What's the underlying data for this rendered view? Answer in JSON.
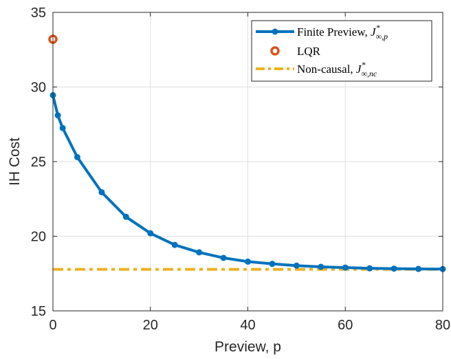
{
  "chart_data": {
    "type": "line",
    "xlabel": "Preview, p",
    "ylabel": "IH Cost",
    "xlim": [
      0,
      80
    ],
    "ylim": [
      15,
      35
    ],
    "xticks": [
      0,
      20,
      40,
      60,
      80
    ],
    "yticks": [
      15,
      20,
      25,
      30,
      35
    ],
    "grid": true,
    "legend_position": "top-right",
    "colors": {
      "finite": "#0072BD",
      "lqr": "#D95319",
      "noncausal": "#EDB120",
      "grid": "#DFDFDF",
      "axis": "#262626"
    },
    "series": [
      {
        "name": "Finite Preview, J*∞,p",
        "legend_parts": {
          "text": "Finite Preview, ",
          "sym": "J",
          "sup": "*",
          "sub": "∞,p"
        },
        "style": "line-with-markers",
        "x": [
          0,
          1,
          2,
          5,
          10,
          15,
          20,
          25,
          30,
          35,
          40,
          45,
          50,
          55,
          60,
          65,
          70,
          75,
          80
        ],
        "y": [
          29.45,
          28.1,
          27.25,
          25.3,
          22.95,
          21.3,
          20.2,
          19.42,
          18.92,
          18.55,
          18.3,
          18.15,
          18.03,
          17.95,
          17.9,
          17.85,
          17.83,
          17.81,
          17.8
        ]
      },
      {
        "name": "LQR",
        "legend_parts": {
          "text": "LQR"
        },
        "style": "marker",
        "x": [
          0
        ],
        "y": [
          33.2
        ]
      },
      {
        "name": "Non-causal, J*∞,nc",
        "legend_parts": {
          "text": "Non-causal, ",
          "sym": "J",
          "sup": "*",
          "sub": "∞,nc"
        },
        "style": "dash-dot-line",
        "x": [
          0,
          80
        ],
        "y": [
          17.78,
          17.78
        ]
      }
    ]
  }
}
